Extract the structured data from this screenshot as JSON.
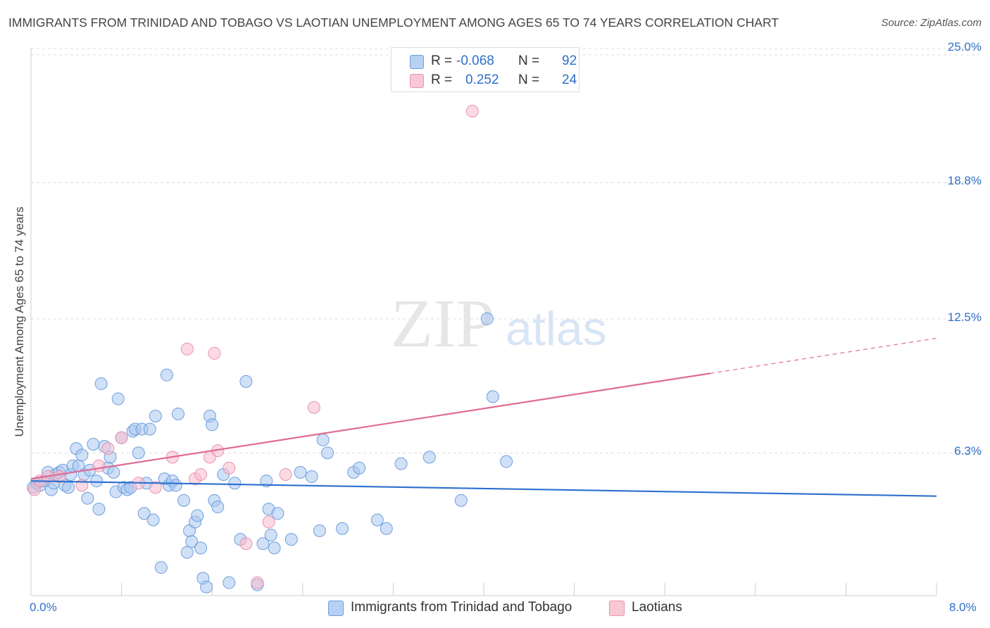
{
  "title": "IMMIGRANTS FROM TRINIDAD AND TOBAGO VS LAOTIAN UNEMPLOYMENT AMONG AGES 65 TO 74 YEARS CORRELATION CHART",
  "source": "Source: ZipAtlas.com",
  "watermark": {
    "zip": "ZIP",
    "atlas": "atlas"
  },
  "legend_top": [
    {
      "r_label": "R =",
      "r_value": "-0.068",
      "n_label": "N =",
      "n_value": "92"
    },
    {
      "r_label": "R =",
      "r_value": "0.252",
      "n_label": "N =",
      "n_value": "24"
    }
  ],
  "colors": {
    "blue_fill": "#a9c6f0",
    "blue_stroke": "#6f9fdc",
    "blue_line": "#2d6fcf",
    "pink_fill": "#f7bccd",
    "pink_stroke": "#e993ad",
    "pink_line": "#e06b93",
    "grid": "#dcdcdc",
    "axis_text": "#2f6fca"
  },
  "chart_data": {
    "type": "scatter",
    "title": "IMMIGRANTS FROM TRINIDAD AND TOBAGO VS LAOTIAN UNEMPLOYMENT AMONG AGES 65 TO 74 YEARS CORRELATION CHART",
    "xlabel": "",
    "ylabel": "Unemployment Among Ages 65 to 74 years",
    "xlim": [
      0,
      8.0
    ],
    "ylim": [
      0,
      25.0
    ],
    "x_tick_labels": [
      "0.0%",
      "8.0%"
    ],
    "y_ticks": [
      6.3,
      12.5,
      18.8,
      25.0
    ],
    "y_tick_labels": [
      "6.3%",
      "12.5%",
      "18.8%",
      "25.0%"
    ],
    "grid": "horizontal dashed",
    "legend": "top-center and bottom",
    "series": [
      {
        "name": "Immigrants from Trinidad and Tobago",
        "R": -0.068,
        "N": 92,
        "trend": {
          "x0": 0,
          "y0": 5.3,
          "x1": 8.0,
          "y1": 4.6
        },
        "points": [
          [
            0.02,
            5.0
          ],
          [
            0.05,
            5.2
          ],
          [
            0.08,
            5.1
          ],
          [
            0.12,
            5.3
          ],
          [
            0.15,
            5.7
          ],
          [
            0.18,
            4.9
          ],
          [
            0.2,
            5.2
          ],
          [
            0.22,
            5.6
          ],
          [
            0.25,
            5.7
          ],
          [
            0.28,
            5.8
          ],
          [
            0.3,
            5.1
          ],
          [
            0.33,
            5.0
          ],
          [
            0.35,
            5.6
          ],
          [
            0.37,
            6.0
          ],
          [
            0.4,
            6.8
          ],
          [
            0.42,
            6.0
          ],
          [
            0.45,
            6.5
          ],
          [
            0.47,
            5.6
          ],
          [
            0.5,
            4.5
          ],
          [
            0.52,
            5.8
          ],
          [
            0.55,
            7.0
          ],
          [
            0.58,
            5.3
          ],
          [
            0.6,
            4.0
          ],
          [
            0.62,
            9.8
          ],
          [
            0.65,
            6.9
          ],
          [
            0.68,
            5.9
          ],
          [
            0.7,
            6.4
          ],
          [
            0.73,
            5.7
          ],
          [
            0.75,
            4.8
          ],
          [
            0.77,
            9.1
          ],
          [
            0.8,
            7.3
          ],
          [
            0.82,
            5.0
          ],
          [
            0.85,
            4.9
          ],
          [
            0.88,
            5.0
          ],
          [
            0.9,
            7.6
          ],
          [
            0.92,
            7.7
          ],
          [
            0.95,
            6.6
          ],
          [
            0.98,
            7.7
          ],
          [
            1.0,
            3.8
          ],
          [
            1.02,
            5.2
          ],
          [
            1.05,
            7.7
          ],
          [
            1.08,
            3.5
          ],
          [
            1.1,
            8.3
          ],
          [
            1.15,
            1.3
          ],
          [
            1.18,
            5.4
          ],
          [
            1.2,
            10.2
          ],
          [
            1.22,
            5.1
          ],
          [
            1.25,
            5.3
          ],
          [
            1.28,
            5.1
          ],
          [
            1.3,
            8.4
          ],
          [
            1.35,
            4.4
          ],
          [
            1.38,
            2.0
          ],
          [
            1.4,
            3.0
          ],
          [
            1.42,
            2.5
          ],
          [
            1.45,
            3.4
          ],
          [
            1.47,
            3.7
          ],
          [
            1.5,
            2.2
          ],
          [
            1.52,
            0.8
          ],
          [
            1.55,
            0.4
          ],
          [
            1.58,
            8.3
          ],
          [
            1.6,
            7.9
          ],
          [
            1.62,
            4.4
          ],
          [
            1.65,
            4.1
          ],
          [
            1.7,
            5.6
          ],
          [
            1.75,
            0.6
          ],
          [
            1.8,
            5.2
          ],
          [
            1.85,
            2.6
          ],
          [
            1.9,
            9.9
          ],
          [
            2.0,
            0.5
          ],
          [
            2.05,
            2.4
          ],
          [
            2.08,
            5.3
          ],
          [
            2.1,
            4.0
          ],
          [
            2.12,
            2.8
          ],
          [
            2.15,
            2.2
          ],
          [
            2.18,
            3.8
          ],
          [
            2.3,
            2.6
          ],
          [
            2.38,
            5.7
          ],
          [
            2.48,
            5.5
          ],
          [
            2.55,
            3.0
          ],
          [
            2.58,
            7.2
          ],
          [
            2.62,
            6.6
          ],
          [
            2.75,
            3.1
          ],
          [
            2.85,
            5.7
          ],
          [
            2.9,
            5.9
          ],
          [
            3.06,
            3.5
          ],
          [
            3.14,
            3.1
          ],
          [
            3.27,
            6.1
          ],
          [
            3.52,
            6.4
          ],
          [
            3.8,
            4.4
          ],
          [
            4.03,
            12.8
          ],
          [
            4.08,
            9.2
          ],
          [
            4.2,
            6.2
          ]
        ]
      },
      {
        "name": "Laotians",
        "R": 0.252,
        "N": 24,
        "trend": {
          "x0": 0,
          "y0": 5.4,
          "x1": 8.0,
          "y1": 11.9,
          "solid_until_x": 6.0
        },
        "points": [
          [
            0.03,
            4.9
          ],
          [
            0.08,
            5.3
          ],
          [
            0.15,
            5.5
          ],
          [
            0.25,
            5.5
          ],
          [
            0.45,
            5.1
          ],
          [
            0.6,
            6.0
          ],
          [
            0.68,
            6.8
          ],
          [
            0.8,
            7.3
          ],
          [
            0.95,
            5.2
          ],
          [
            1.1,
            5.0
          ],
          [
            1.25,
            6.4
          ],
          [
            1.38,
            11.4
          ],
          [
            1.45,
            5.4
          ],
          [
            1.5,
            5.6
          ],
          [
            1.58,
            6.4
          ],
          [
            1.62,
            11.2
          ],
          [
            1.65,
            6.7
          ],
          [
            1.75,
            5.9
          ],
          [
            1.9,
            2.4
          ],
          [
            2.0,
            0.6
          ],
          [
            2.1,
            3.4
          ],
          [
            2.25,
            5.6
          ],
          [
            2.5,
            8.7
          ],
          [
            3.9,
            22.4
          ]
        ]
      }
    ]
  }
}
